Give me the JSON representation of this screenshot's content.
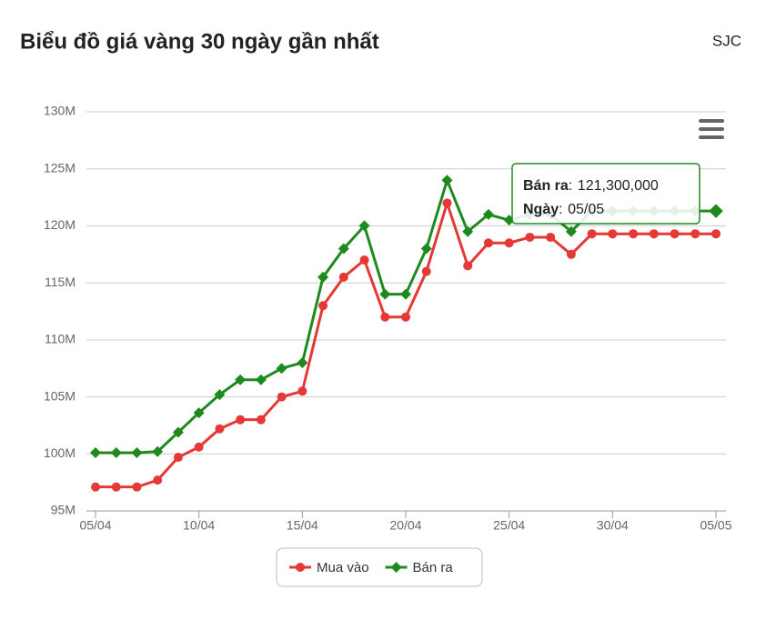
{
  "header": {
    "title": "Biểu đồ giá vàng 30 ngày gần nhất",
    "brand": "SJC"
  },
  "chart_data": {
    "type": "line",
    "categories": [
      "05/04",
      null,
      null,
      null,
      null,
      "10/04",
      null,
      null,
      null,
      null,
      "15/04",
      null,
      null,
      null,
      null,
      "20/04",
      null,
      null,
      null,
      null,
      "25/04",
      null,
      null,
      null,
      null,
      "30/04",
      null,
      null,
      null,
      null,
      "05/05"
    ],
    "series": [
      {
        "name": "Mua vào",
        "color": "#e53935",
        "marker": "circle",
        "values": [
          97.1,
          97.1,
          97.1,
          97.7,
          99.7,
          100.6,
          102.2,
          103.0,
          103.0,
          105.0,
          105.5,
          113.0,
          115.5,
          117.0,
          112.0,
          112.0,
          116.0,
          122.0,
          116.5,
          118.5,
          118.5,
          119.0,
          119.0,
          117.5,
          119.3,
          119.3,
          119.3,
          119.3,
          119.3,
          119.3,
          119.3
        ]
      },
      {
        "name": "Bán ra",
        "color": "#1e8a1e",
        "marker": "diamond",
        "values": [
          100.1,
          100.1,
          100.1,
          100.2,
          101.9,
          103.6,
          105.2,
          106.5,
          106.5,
          107.5,
          108.0,
          115.5,
          118.0,
          120.0,
          114.0,
          114.0,
          118.0,
          124.0,
          119.5,
          121.0,
          120.5,
          121.0,
          121.0,
          119.5,
          121.3,
          121.3,
          121.3,
          121.3,
          121.3,
          121.3,
          121.3
        ]
      }
    ],
    "ylim": [
      95,
      130
    ],
    "yticks": [
      {
        "value": 95,
        "label": "95M"
      },
      {
        "value": 100,
        "label": "100M"
      },
      {
        "value": 105,
        "label": "105M"
      },
      {
        "value": 110,
        "label": "110M"
      },
      {
        "value": 115,
        "label": "115M"
      },
      {
        "value": 120,
        "label": "120M"
      },
      {
        "value": 125,
        "label": "125M"
      },
      {
        "value": 130,
        "label": "130M"
      }
    ],
    "grid": true,
    "tooltip": {
      "value_label": "121,300,000",
      "date_label": "Ngày"
    }
  }
}
